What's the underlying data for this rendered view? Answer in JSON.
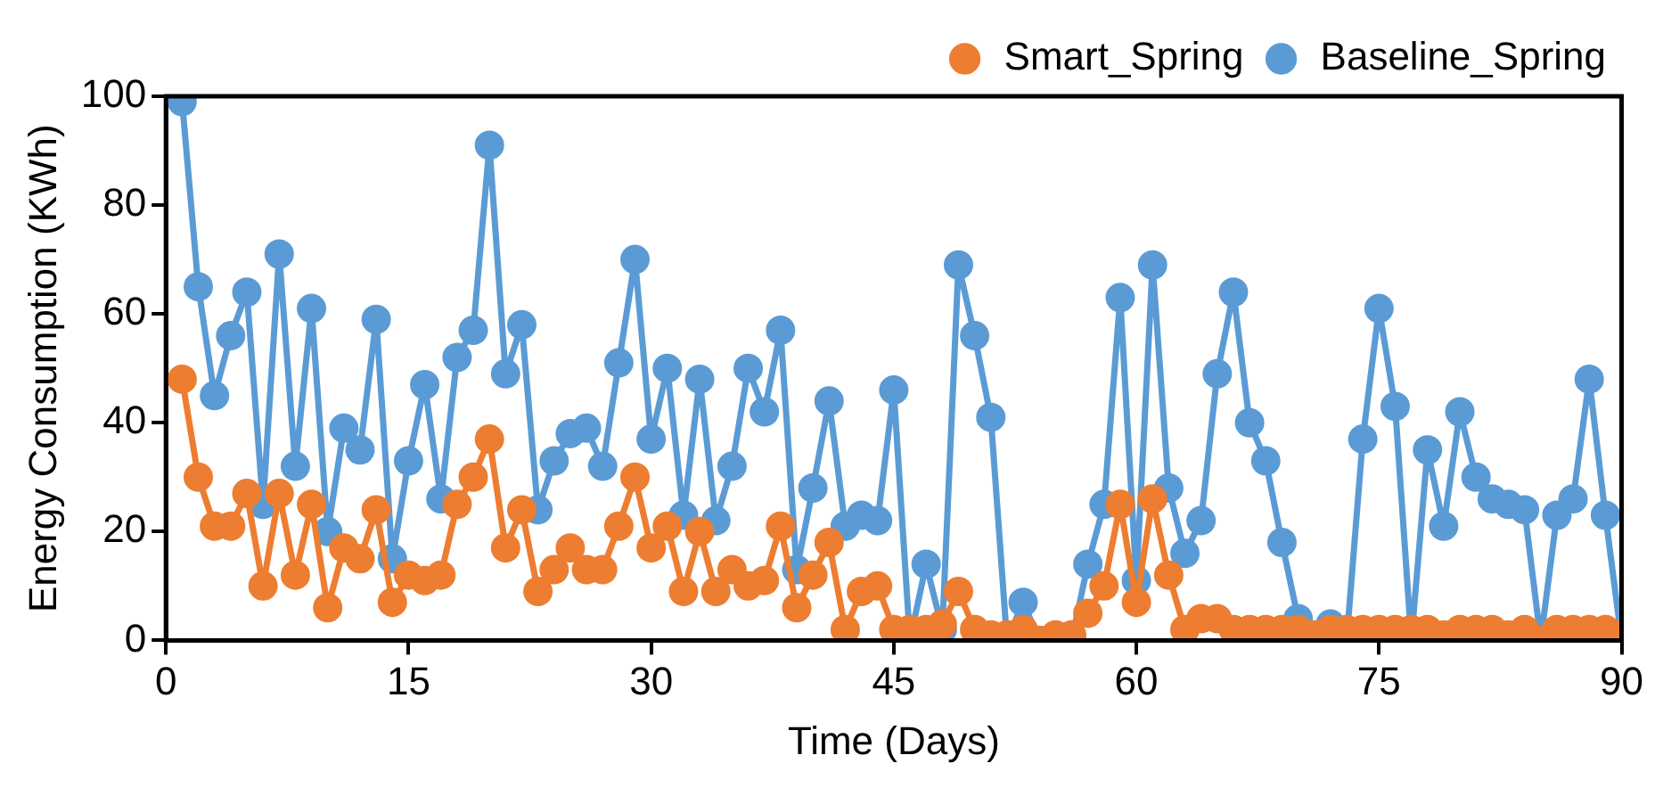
{
  "chart_data": {
    "type": "line",
    "xlabel": "Time (Days)",
    "ylabel": "Energy Consumption (KWh)",
    "x": [
      1,
      2,
      3,
      4,
      5,
      6,
      7,
      8,
      9,
      10,
      11,
      12,
      13,
      14,
      15,
      16,
      17,
      18,
      19,
      20,
      21,
      22,
      23,
      24,
      25,
      26,
      27,
      28,
      29,
      30,
      31,
      32,
      33,
      34,
      35,
      36,
      37,
      38,
      39,
      40,
      41,
      42,
      43,
      44,
      45,
      46,
      47,
      48,
      49,
      50,
      51,
      52,
      53,
      54,
      55,
      56,
      57,
      58,
      59,
      60,
      61,
      62,
      63,
      64,
      65,
      66,
      67,
      68,
      69,
      70,
      71,
      72,
      73,
      74,
      75,
      76,
      77,
      78,
      79,
      80,
      81,
      82,
      83,
      84,
      85,
      86,
      87,
      88,
      89,
      90
    ],
    "series": [
      {
        "name": "Baseline_Spring",
        "color": "#5b9bd5",
        "values": [
          99,
          65,
          45,
          56,
          64,
          25,
          71,
          32,
          61,
          20,
          39,
          35,
          59,
          15,
          33,
          47,
          26,
          52,
          57,
          91,
          49,
          58,
          24,
          33,
          38,
          39,
          32,
          51,
          70,
          37,
          50,
          23,
          48,
          22,
          32,
          50,
          42,
          57,
          13,
          28,
          44,
          21,
          23,
          22,
          46,
          0,
          14,
          2,
          69,
          56,
          41,
          0,
          7,
          0,
          0,
          0,
          14,
          25,
          63,
          11,
          69,
          28,
          16,
          22,
          49,
          64,
          40,
          33,
          18,
          4,
          0,
          3,
          0,
          37,
          61,
          43,
          0,
          35,
          21,
          42,
          30,
          26,
          25,
          24,
          0,
          23,
          26,
          48,
          23,
          0
        ]
      },
      {
        "name": "Smart_Spring",
        "color": "#ed7d31",
        "values": [
          48,
          30,
          21,
          21,
          27,
          10,
          27,
          12,
          25,
          6,
          17,
          15,
          24,
          7,
          12,
          11,
          12,
          25,
          30,
          37,
          17,
          24,
          9,
          13,
          17,
          13,
          13,
          21,
          30,
          17,
          21,
          9,
          20,
          9,
          13,
          10,
          11,
          21,
          6,
          12,
          18,
          2,
          9,
          10,
          2,
          2,
          2,
          3,
          9,
          2,
          1,
          1,
          2,
          0,
          1,
          1,
          5,
          10,
          25,
          7,
          26,
          12,
          2,
          4,
          4,
          2,
          2,
          2,
          2,
          2,
          1,
          2,
          2,
          2,
          2,
          2,
          2,
          2,
          1,
          2,
          2,
          2,
          1,
          2,
          0,
          2,
          2,
          2,
          2,
          1
        ]
      }
    ],
    "xlim": [
      0,
      90
    ],
    "xticks": [
      0,
      15,
      30,
      45,
      60,
      75,
      90
    ],
    "ylim": [
      0,
      100
    ],
    "yticks": [
      0,
      20,
      40,
      60,
      80,
      100
    ],
    "grid": false,
    "legend": "top right",
    "marker": "circle",
    "line_style": "solid"
  }
}
